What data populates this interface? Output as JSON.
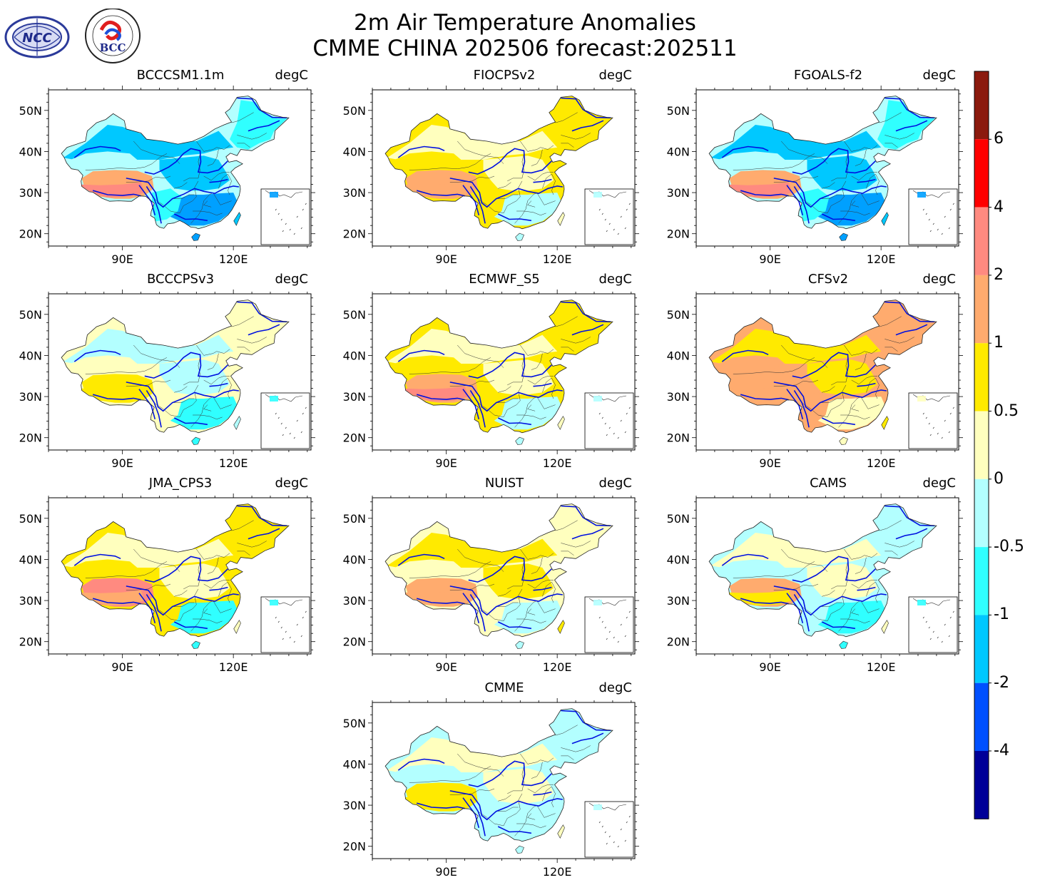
{
  "title": {
    "line1": "2m Air Temperature Anomalies",
    "line2": "CMME CHINA 202506 forecast:202511"
  },
  "logos": {
    "left": "NCC",
    "right": "BCC"
  },
  "unit": "degC",
  "axes": {
    "lon_ticks": [
      "90E",
      "120E"
    ],
    "lat_ticks": [
      "50N",
      "40N",
      "30N",
      "20N"
    ]
  },
  "panels": [
    {
      "name": "BCCCSM1.1m",
      "dominant": [
        "#00c8ff",
        "#30ffff",
        "#b3ffff"
      ],
      "warm": [
        "#ffab6e",
        "#ff8a80"
      ],
      "cold_core": "#00a0ff"
    },
    {
      "name": "FIOCPSv2",
      "dominant": [
        "#ffffbe",
        "#ffea00"
      ],
      "warm": [
        "#ffab6e"
      ],
      "cold_core": "#b3ffff"
    },
    {
      "name": "FGOALS-f2",
      "dominant": [
        "#00c8ff",
        "#30ffff",
        "#b3ffff"
      ],
      "warm": [
        "#ffab6e",
        "#ff8a80"
      ],
      "cold_core": "#00a0ff"
    },
    {
      "name": "BCCCPSv3",
      "dominant": [
        "#b3ffff",
        "#ffffbe"
      ],
      "warm": [
        "#ffea00"
      ],
      "cold_core": "#30ffff"
    },
    {
      "name": "ECMWF_S5",
      "dominant": [
        "#ffffbe",
        "#ffea00"
      ],
      "warm": [
        "#ffab6e",
        "#ff8a80"
      ],
      "cold_core": "#b3ffff"
    },
    {
      "name": "CFSv2",
      "dominant": [
        "#ffea00",
        "#ffab6e"
      ],
      "warm": [
        "#ffab6e"
      ],
      "cold_core": "#ffffbe"
    },
    {
      "name": "JMA_CPS3",
      "dominant": [
        "#ffffbe",
        "#ffea00"
      ],
      "warm": [
        "#ff8a80",
        "#ffab6e"
      ],
      "cold_core": "#30ffff"
    },
    {
      "name": "NUIST",
      "dominant": [
        "#ffea00",
        "#ffffbe"
      ],
      "warm": [
        "#ffab6e"
      ],
      "cold_core": "#b3ffff"
    },
    {
      "name": "CAMS",
      "dominant": [
        "#ffffbe",
        "#b3ffff"
      ],
      "warm": [
        "#ffab6e",
        "#ffea00"
      ],
      "cold_core": "#30ffff"
    },
    {
      "name": "CMME",
      "dominant": [
        "#ffffbe",
        "#b3ffff"
      ],
      "warm": [
        "#ffea00"
      ],
      "cold_core": "#b3ffff"
    }
  ],
  "colorbar": {
    "labels": [
      "6",
      "4",
      "2",
      "1",
      "0.5",
      "0",
      "-0.5",
      "-1",
      "-2",
      "-4"
    ],
    "colors": [
      "#8b1a0e",
      "#ff0000",
      "#ff8a80",
      "#ffab6e",
      "#ffea00",
      "#ffffbe",
      "#b3ffff",
      "#30ffff",
      "#00c8ff",
      "#0050ff",
      "#000098"
    ]
  }
}
